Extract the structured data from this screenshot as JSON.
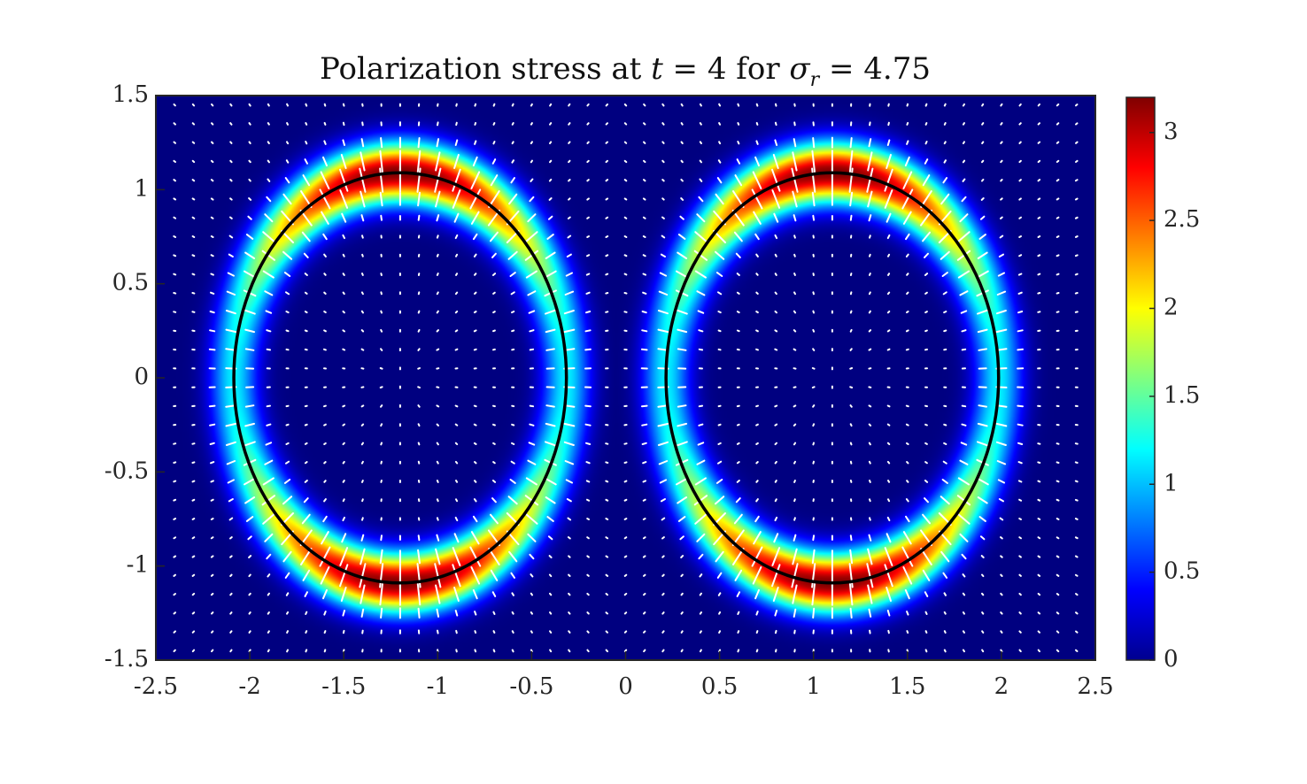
{
  "chart_data": {
    "type": "heatmap",
    "title": {
      "prefix": "Polarization stress at ",
      "t_symbol": "t",
      "t_eq": " = 4 for ",
      "sigma_symbol": "σ",
      "sigma_sub": "r",
      "sigma_eq": " = 4.75"
    },
    "xlabel": "",
    "ylabel": "",
    "xlim": [
      -2.5,
      2.5
    ],
    "ylim": [
      -1.5,
      1.5
    ],
    "x_ticks": [
      "-2.5",
      "-2",
      "-1.5",
      "-1",
      "-0.5",
      "0",
      "0.5",
      "1",
      "1.5",
      "2",
      "2.5"
    ],
    "y_ticks": [
      "1.5",
      "1",
      "0.5",
      "0",
      "-0.5",
      "-1",
      "-1.5"
    ],
    "colorbar": {
      "colormap": "jet",
      "range": [
        0,
        3.2
      ],
      "ticks": [
        "0",
        "0.5",
        "1",
        "1.5",
        "2",
        "2.5",
        "3"
      ]
    },
    "interfaces": [
      {
        "name": "left-droplet",
        "center": [
          -1.2,
          0
        ],
        "semi_axes": [
          0.885,
          1.09
        ]
      },
      {
        "name": "right-droplet",
        "center": [
          1.1,
          0
        ],
        "semi_axes": [
          0.885,
          1.09
        ]
      }
    ],
    "field_peak": 3.2,
    "interface_color": "#000000",
    "arrow_color": "#ffffff",
    "grid": false
  }
}
